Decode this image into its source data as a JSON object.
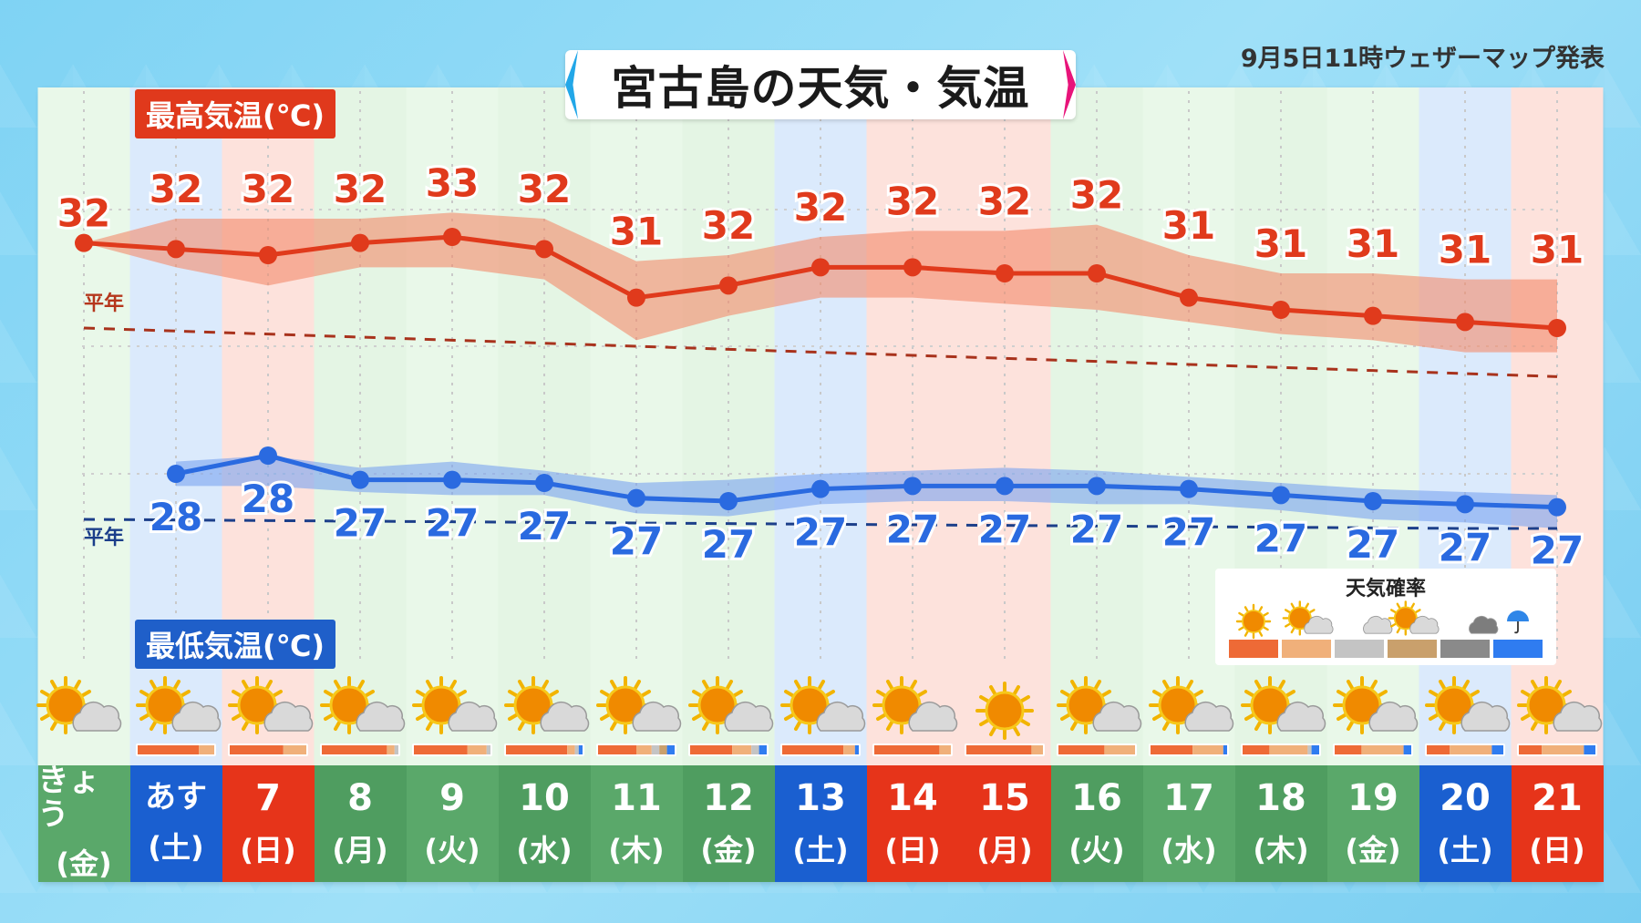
{
  "title": "宮古島の天気・気温",
  "issued": "9月5日11時ウェザーマップ発表",
  "max_label": "最高気温(℃)",
  "min_label": "最低気温(℃)",
  "heinen_label": "平年",
  "legend": {
    "title": "天気確率",
    "icons": [
      "sun-icon",
      "sun-cloud-icon",
      "cloud-icon",
      "sun-cloud-icon",
      "dark-cloud-icon",
      "umbrella-icon"
    ],
    "colors": [
      "#ee6a36",
      "#f0b07a",
      "#c4c4c4",
      "#c9a06c",
      "#8a8a8a",
      "#2f7cf0"
    ]
  },
  "colors": {
    "max_line": "#e03a1c",
    "max_band": "#f48a6a",
    "min_line": "#2a6ae0",
    "min_band": "#7aa3f0",
    "max_normal": "#a8321c",
    "min_normal": "#1c3f8a",
    "weekday_bg": "#e9f8e9",
    "saturday_bg": "#dbeafc",
    "holiday_bg": "#fde2dc",
    "weekday_cell": "#5aa86a",
    "saturday_cell": "#1a5fd0",
    "holiday_cell": "#e6341a"
  },
  "chart_data": {
    "type": "line",
    "x": [
      "きょう",
      "あす",
      "7",
      "8",
      "9",
      "10",
      "11",
      "12",
      "13",
      "14",
      "15",
      "16",
      "17",
      "18",
      "19",
      "20",
      "21"
    ],
    "weekdays": [
      "(金)",
      "(土)",
      "(日)",
      "(月)",
      "(火)",
      "(水)",
      "(木)",
      "(金)",
      "(土)",
      "(日)",
      "(月)",
      "(火)",
      "(水)",
      "(木)",
      "(金)",
      "(土)",
      "(日)"
    ],
    "day_types": [
      "weekday",
      "saturday",
      "holiday",
      "weekday",
      "weekday",
      "weekday",
      "weekday",
      "weekday",
      "saturday",
      "holiday",
      "holiday",
      "weekday",
      "weekday",
      "weekday",
      "weekday",
      "saturday",
      "holiday"
    ],
    "series": [
      {
        "values": [
          32,
          32,
          32,
          32,
          33,
          32,
          31,
          32,
          32,
          32,
          32,
          32,
          31,
          31,
          31,
          31,
          31
        ],
        "line_y": [
          32.0,
          31.9,
          31.8,
          32.0,
          32.1,
          31.9,
          31.1,
          31.3,
          31.6,
          31.6,
          31.5,
          31.5,
          31.1,
          30.9,
          30.8,
          30.7,
          30.6
        ],
        "band_high": [
          32.0,
          32.4,
          32.4,
          32.4,
          32.5,
          32.4,
          31.7,
          31.8,
          32.1,
          32.2,
          32.2,
          32.3,
          31.8,
          31.5,
          31.5,
          31.4,
          31.4
        ],
        "band_low": [
          32.0,
          31.6,
          31.3,
          31.6,
          31.6,
          31.4,
          30.4,
          30.8,
          31.1,
          31.1,
          31.0,
          30.9,
          30.7,
          30.5,
          30.4,
          30.2,
          30.2
        ],
        "normal": [
          30.6,
          30.55,
          30.5,
          30.45,
          30.4,
          30.35,
          30.3,
          30.25,
          30.2,
          30.15,
          30.1,
          30.05,
          30.0,
          29.95,
          29.9,
          29.85,
          29.8
        ]
      },
      {
        "values": [
          null,
          28,
          28,
          27,
          27,
          27,
          27,
          27,
          27,
          27,
          27,
          27,
          27,
          27,
          27,
          27,
          27
        ],
        "line_y": [
          null,
          28.2,
          28.5,
          28.1,
          28.1,
          28.05,
          27.8,
          27.75,
          27.95,
          28.0,
          28.0,
          28.0,
          27.95,
          27.85,
          27.75,
          27.7,
          27.65
        ],
        "band_high": [
          null,
          28.4,
          28.5,
          28.3,
          28.4,
          28.25,
          28.05,
          28.1,
          28.2,
          28.25,
          28.3,
          28.25,
          28.15,
          28.05,
          27.95,
          27.9,
          27.85
        ],
        "band_low": [
          null,
          28.0,
          28.0,
          27.9,
          27.85,
          27.85,
          27.55,
          27.5,
          27.7,
          27.75,
          27.75,
          27.7,
          27.7,
          27.6,
          27.45,
          27.4,
          27.3
        ],
        "normal": [
          27.45,
          27.44,
          27.43,
          27.42,
          27.41,
          27.4,
          27.39,
          27.38,
          27.37,
          27.36,
          27.35,
          27.34,
          27.33,
          27.32,
          27.31,
          27.3,
          27.3
        ]
      }
    ],
    "weather_icons": [
      "sun-cloud",
      "sun-cloud",
      "sun-cloud",
      "sun-cloud",
      "sun-cloud",
      "sun-cloud",
      "sun-cloud",
      "sun-cloud",
      "sun-cloud",
      "sun-cloud",
      "sun",
      "sun-cloud",
      "sun-cloud",
      "sun-cloud",
      "sun-cloud",
      "sun-cloud",
      "sun-cloud"
    ],
    "weather_prob": [
      null,
      [
        0.8,
        0.2,
        0,
        0,
        0,
        0
      ],
      [
        0.7,
        0.3,
        0,
        0,
        0,
        0
      ],
      [
        0.85,
        0.1,
        0.05,
        0,
        0,
        0
      ],
      [
        0.7,
        0.25,
        0.05,
        0,
        0,
        0
      ],
      [
        0.8,
        0.1,
        0.05,
        0,
        0,
        0.05
      ],
      [
        0.5,
        0.2,
        0.1,
        0.1,
        0,
        0.1
      ],
      [
        0.55,
        0.25,
        0.1,
        0,
        0,
        0.1
      ],
      [
        0.8,
        0.15,
        0,
        0,
        0,
        0.05
      ],
      [
        0.85,
        0.15,
        0,
        0,
        0,
        0
      ],
      [
        0.85,
        0.15,
        0,
        0,
        0,
        0
      ],
      [
        0.6,
        0.4,
        0,
        0,
        0,
        0
      ],
      [
        0.55,
        0.4,
        0,
        0,
        0,
        0.05
      ],
      [
        0.35,
        0.5,
        0.05,
        0,
        0,
        0.1
      ],
      [
        0.35,
        0.55,
        0,
        0,
        0,
        0.1
      ],
      [
        0.3,
        0.55,
        0,
        0,
        0,
        0.15
      ],
      [
        0.3,
        0.55,
        0,
        0,
        0,
        0.15
      ]
    ],
    "ylim": [
      26.4,
      33.6
    ]
  }
}
